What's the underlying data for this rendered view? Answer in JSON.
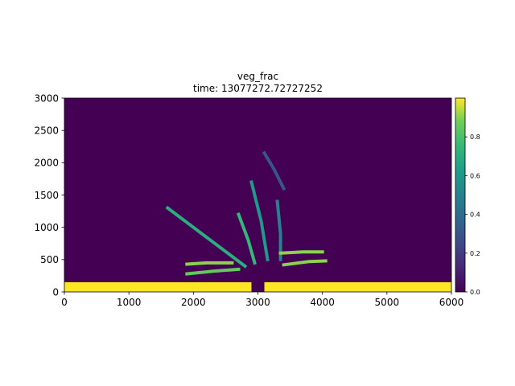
{
  "chart_data": {
    "type": "heatmap",
    "title": "veg_frac",
    "subtitle": "time: 13077272.72727252",
    "xlabel": "",
    "ylabel": "",
    "xlim": [
      0,
      6000
    ],
    "ylim": [
      0,
      3000
    ],
    "x_ticks": [
      "0",
      "1000",
      "2000",
      "3000",
      "4000",
      "5000",
      "6000"
    ],
    "y_ticks": [
      "0",
      "500",
      "1000",
      "1500",
      "2000",
      "2500",
      "3000"
    ],
    "colorbar": {
      "range": [
        0,
        1
      ],
      "ticks": [
        "0.0",
        "0.2",
        "0.4",
        "0.6",
        "0.8"
      ],
      "colormap": "viridis"
    },
    "grid": false,
    "background_value": 0,
    "features": [
      {
        "name": "shoreline-band-left",
        "value": 1.0,
        "x": [
          0,
          2900
        ],
        "y": [
          0,
          150
        ]
      },
      {
        "name": "shoreline-band-right",
        "value": 1.0,
        "x": [
          3100,
          6000
        ],
        "y": [
          0,
          150
        ]
      },
      {
        "name": "channel-west-lower",
        "value": 0.85,
        "points": [
          [
            1900,
            280
          ],
          [
            2300,
            320
          ],
          [
            2700,
            350
          ]
        ]
      },
      {
        "name": "channel-west-mid",
        "value": 0.9,
        "points": [
          [
            1900,
            430
          ],
          [
            2200,
            450
          ],
          [
            2600,
            450
          ]
        ]
      },
      {
        "name": "channel-northwest",
        "value": 0.7,
        "points": [
          [
            1600,
            1300
          ],
          [
            2000,
            1000
          ],
          [
            2400,
            700
          ],
          [
            2800,
            400
          ]
        ]
      },
      {
        "name": "channel-north-a",
        "value": 0.75,
        "points": [
          [
            2700,
            1200
          ],
          [
            2850,
            800
          ],
          [
            2950,
            450
          ]
        ]
      },
      {
        "name": "channel-north-b",
        "value": 0.6,
        "points": [
          [
            2900,
            1700
          ],
          [
            3050,
            1100
          ],
          [
            3150,
            500
          ]
        ]
      },
      {
        "name": "channel-north-c",
        "value": 0.5,
        "points": [
          [
            3300,
            1400
          ],
          [
            3350,
            900
          ],
          [
            3350,
            500
          ]
        ]
      },
      {
        "name": "channel-east-upper",
        "value": 0.9,
        "points": [
          [
            3350,
            600
          ],
          [
            3700,
            620
          ],
          [
            4000,
            620
          ]
        ]
      },
      {
        "name": "channel-east-lower",
        "value": 0.9,
        "points": [
          [
            3400,
            420
          ],
          [
            3800,
            470
          ],
          [
            4050,
            480
          ]
        ]
      },
      {
        "name": "plume-top-faint",
        "value": 0.3,
        "points": [
          [
            3100,
            2150
          ],
          [
            3250,
            1900
          ],
          [
            3400,
            1600
          ]
        ]
      }
    ]
  }
}
